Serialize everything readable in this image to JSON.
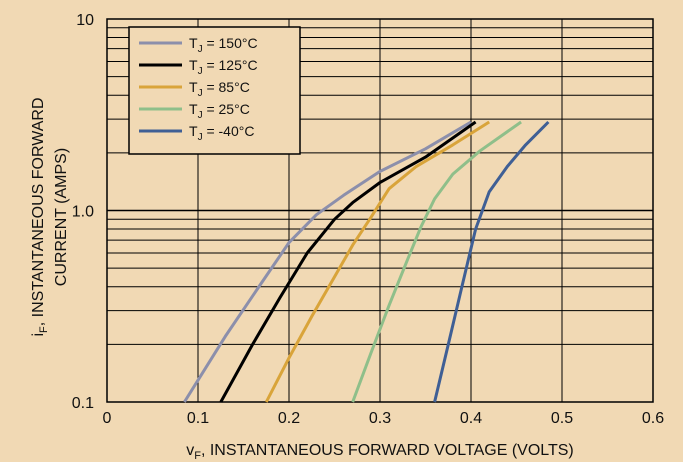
{
  "chart_data": {
    "type": "line",
    "background_color": "#f1d9b4",
    "grid": true,
    "xscale": "linear",
    "yscale": "log",
    "xlim": [
      0,
      0.6
    ],
    "ylim": [
      0.1,
      10
    ],
    "xlabel": {
      "prefix": "v",
      "sub": "F",
      "rest": ", INSTANTANEOUS FORWARD VOLTAGE (VOLTS)"
    },
    "ylabel": {
      "prefix": "i",
      "sub": "F",
      "line1_rest": ", INSTANTANEOUS FORWARD",
      "line2": "CURRENT (AMPS)"
    },
    "xticks": [
      {
        "value": 0,
        "label": "0"
      },
      {
        "value": 0.1,
        "label": "0.1"
      },
      {
        "value": 0.2,
        "label": "0.2"
      },
      {
        "value": 0.3,
        "label": "0.3"
      },
      {
        "value": 0.4,
        "label": "0.4"
      },
      {
        "value": 0.5,
        "label": "0.5"
      },
      {
        "value": 0.6,
        "label": "0.6"
      }
    ],
    "yticks": [
      {
        "value": 0.1,
        "label": "0.1"
      },
      {
        "value": 1.0,
        "label": "1.0"
      },
      {
        "value": 10,
        "label": "10"
      }
    ],
    "legend_position": "top-left",
    "series": [
      {
        "legend_prefix": "T",
        "legend_sub": "J",
        "legend_rest": " = 150°C",
        "color": "#8c8fab",
        "x": [
          0.085,
          0.13,
          0.17,
          0.2,
          0.23,
          0.26,
          0.3,
          0.35,
          0.4
        ],
        "y": [
          0.1,
          0.22,
          0.42,
          0.68,
          0.95,
          1.2,
          1.6,
          2.1,
          2.9
        ]
      },
      {
        "legend_prefix": "T",
        "legend_sub": "J",
        "legend_rest": " = 125°C",
        "color": "#000000",
        "x": [
          0.125,
          0.16,
          0.19,
          0.22,
          0.25,
          0.27,
          0.3,
          0.35,
          0.405
        ],
        "y": [
          0.1,
          0.2,
          0.35,
          0.6,
          0.9,
          1.1,
          1.4,
          1.9,
          2.9
        ]
      },
      {
        "legend_prefix": "T",
        "legend_sub": "J",
        "legend_rest": " = 85°C",
        "color": "#d9a43a",
        "x": [
          0.175,
          0.2,
          0.225,
          0.25,
          0.27,
          0.29,
          0.31,
          0.34,
          0.38,
          0.42
        ],
        "y": [
          0.1,
          0.17,
          0.28,
          0.45,
          0.66,
          0.92,
          1.3,
          1.7,
          2.2,
          2.9
        ]
      },
      {
        "legend_prefix": "T",
        "legend_sub": "J",
        "legend_rest": " = 25°C",
        "color": "#8fbf8a",
        "x": [
          0.27,
          0.29,
          0.31,
          0.33,
          0.345,
          0.36,
          0.38,
          0.41,
          0.455
        ],
        "y": [
          0.1,
          0.18,
          0.32,
          0.55,
          0.82,
          1.15,
          1.55,
          2.05,
          2.9
        ]
      },
      {
        "legend_prefix": "T",
        "legend_sub": "J",
        "legend_rest": " = -40°C",
        "color": "#3f5f95",
        "x": [
          0.36,
          0.375,
          0.39,
          0.405,
          0.42,
          0.44,
          0.46,
          0.485
        ],
        "y": [
          0.1,
          0.2,
          0.4,
          0.8,
          1.25,
          1.7,
          2.2,
          2.9
        ]
      }
    ]
  }
}
